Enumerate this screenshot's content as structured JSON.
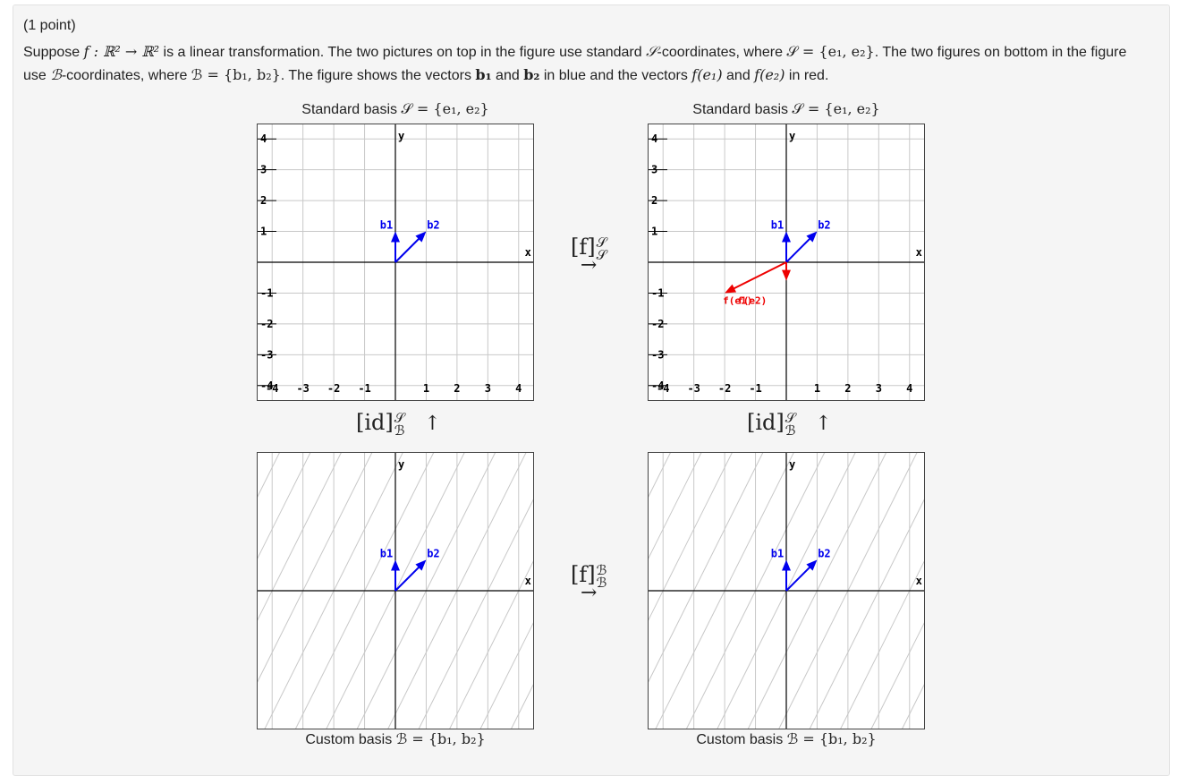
{
  "problem": {
    "points": "(1 point)",
    "statement": {
      "p1": "Suppose ",
      "p2": " is a linear transformation. The two pictures on top in the figure use standard ",
      "p3": "-coordinates, where ",
      "p4": ". The two figures on bottom in the figure use ",
      "p5": "-coordinates, where ",
      "p6": ". The figure shows the vectors ",
      "p7": " and ",
      "p8": " in blue and the vectors ",
      "p9": " and ",
      "p10": " in red."
    },
    "math": {
      "f_map": "f : ℝ² → ℝ²",
      "S": "𝒮",
      "S_def": "𝒮 = {e₁, e₂}",
      "B": "ℬ",
      "B_def": "ℬ = {b₁, b₂}",
      "b1": "b₁",
      "b2": "b₂",
      "fe1": "f(e₁)",
      "fe2": "f(e₂)"
    }
  },
  "captions": {
    "std_left_text": "Standard basis ",
    "std_left_math": "𝒮 = {e₁, e₂}",
    "std_right_text": "Standard basis ",
    "std_right_math": "𝒮 = {e₁, e₂}",
    "cust_left_text": "Custom basis ",
    "cust_left_math": "ℬ = {b₁, b₂}",
    "cust_right_text": "Custom basis ",
    "cust_right_math": "ℬ = {b₁, b₂}"
  },
  "operators": {
    "top": {
      "base": "[f]",
      "sup": "𝒮",
      "sub": "𝒮",
      "arrow": "→"
    },
    "bottom": {
      "base": "[f]",
      "sup": "ℬ",
      "sub": "ℬ",
      "arrow": "→"
    },
    "left": {
      "base": "[id]",
      "sup": "𝒮",
      "sub": "ℬ",
      "arrow": "↑"
    },
    "right": {
      "base": "[id]",
      "sup": "𝒮",
      "sub": "ℬ",
      "arrow": "↑"
    }
  },
  "graphs": {
    "x_axis_label": "x",
    "y_axis_label": "y",
    "x_ticks": [
      "-4",
      "-3",
      "-2",
      "-1",
      "1",
      "2",
      "3",
      "4"
    ],
    "y_ticks": [
      "4",
      "3",
      "2",
      "1",
      "-1",
      "-2",
      "-3",
      "-4"
    ],
    "range": [
      -4.5,
      4.5
    ],
    "colors": {
      "blue": "#0000ee",
      "red": "#ee0000",
      "grid": "#c8c8c8",
      "axis": "#000000"
    },
    "vectors": {
      "b1": {
        "label": "b1",
        "x": 0,
        "y": 1
      },
      "b2": {
        "label": "b2",
        "x": 1,
        "y": 1
      },
      "fe1": {
        "label": "f(e1)",
        "x": -2,
        "y": -1
      },
      "fe2": {
        "label": "f(e2)",
        "x": 0,
        "y": -0.6
      }
    }
  }
}
